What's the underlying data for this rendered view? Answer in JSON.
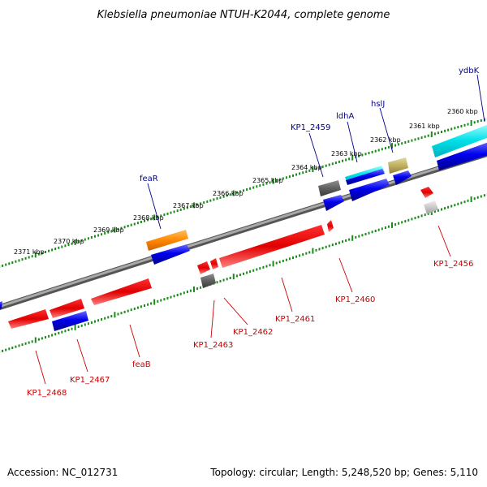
{
  "title": "Klebsiella pneumoniae NTUH-K2044, complete genome",
  "footer": {
    "accession": "Accession: NC_012731",
    "summary": "Topology: circular; Length: 5,248,520 bp; Genes: 5,110"
  },
  "kbp_ticks": [
    "2360 kbp",
    "2361 kbp",
    "2362 kbp",
    "2363 kbp",
    "2364 kbp",
    "2365 kbp",
    "2366 kbp",
    "2367 kbp",
    "2368 kbp",
    "2369 kbp",
    "2370 kbp",
    "2371 kbp"
  ],
  "top_labels": [
    "ydbK",
    "hslJ",
    "ldhA",
    "KP1_2459",
    "feaR"
  ],
  "bottom_labels": [
    "KP1_2456",
    "KP1_2460",
    "KP1_2461",
    "KP1_2462",
    "KP1_2463",
    "feaB",
    "KP1_2467",
    "KP1_2468"
  ],
  "colors": {
    "background": "#ffffff",
    "backbone": "#808080",
    "scale_dots": "#1a8a1a",
    "top_label": "#00008b",
    "bottom_label": "#cc0000",
    "forward_gene": "#0000ee",
    "reverse_gene": "#ee0000",
    "cyan_gene": "#00e0e8",
    "orange_gene": "#ff8800",
    "olive_gene": "#c0b060",
    "gray_gene": "#606060",
    "light_gray_gene": "#c0c0c0"
  }
}
